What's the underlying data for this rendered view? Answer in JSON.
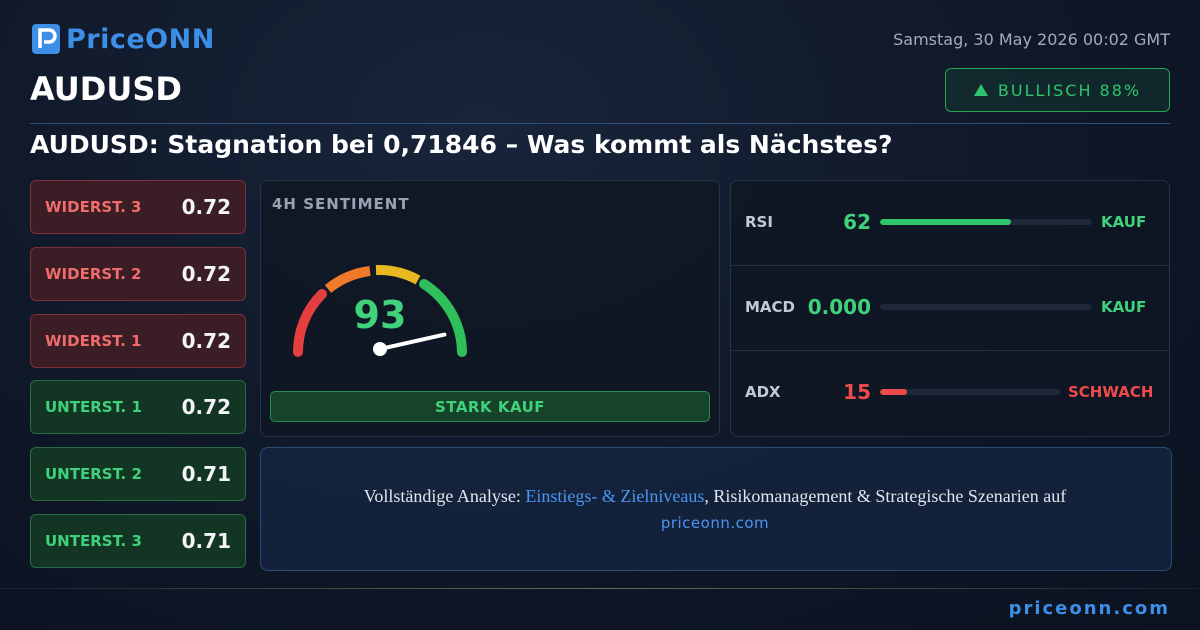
{
  "header": {
    "logo": "PriceONN",
    "date": "Samstag, 30 May 2026 00:02 GMT",
    "symbol": "AUDUSD",
    "badge": "BULLISCH 88%",
    "headline": "AUDUSD: Stagnation bei 0,71846 – Was kommt als Nächstes?"
  },
  "levels": [
    {
      "label": "WIDERST. 3",
      "value": 0.72
    },
    {
      "label": "WIDERST. 2",
      "value": 0.72
    },
    {
      "label": "WIDERST. 1",
      "value": 0.72
    },
    {
      "label": "UNTERST. 1",
      "value": 0.72
    },
    {
      "label": "UNTERST. 2",
      "value": 0.71
    },
    {
      "label": "UNTERST. 3",
      "value": 0.71
    }
  ],
  "sentiment": {
    "title": "4H SENTIMENT",
    "value": 93,
    "signal": "STARK KAUF"
  },
  "indicators": [
    {
      "name": "RSI",
      "value": 62,
      "signal": "KAUF"
    },
    {
      "name": "MACD",
      "value": "0.000",
      "signal": "KAUF"
    },
    {
      "name": "ADX",
      "value": 15,
      "signal": "SCHWACH"
    }
  ],
  "footer": {
    "prefix": "Vollständige Analyse:",
    "link": "Einstiegs- & Zielniveaus",
    "suffix": ", Risikomanagement & Strategische Szenarien auf",
    "url": "priceonn.com",
    "brand": "priceonn.com"
  }
}
